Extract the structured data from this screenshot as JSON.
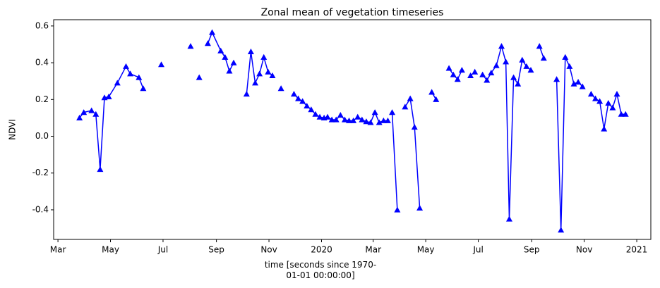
{
  "chart_data": {
    "type": "line",
    "title": "Zonal mean of vegetation timeseries",
    "x_label": "time [seconds since 1970-01-01 00:00:00]",
    "y_label": "NDVI",
    "xlim": [
      1550966400,
      1610870400
    ],
    "xticks": [
      {
        "value": 1551398400,
        "label": "Mar"
      },
      {
        "value": 1556668800,
        "label": "May"
      },
      {
        "value": 1561939200,
        "label": "Jul"
      },
      {
        "value": 1567296000,
        "label": "Sep"
      },
      {
        "value": 1572566400,
        "label": "Nov"
      },
      {
        "value": 1577836800,
        "label": "2020"
      },
      {
        "value": 1583020800,
        "label": "Mar"
      },
      {
        "value": 1588291200,
        "label": "May"
      },
      {
        "value": 1593561600,
        "label": "Jul"
      },
      {
        "value": 1598918400,
        "label": "Sep"
      },
      {
        "value": 1604188800,
        "label": "Nov"
      },
      {
        "value": 1609459200,
        "label": "2021"
      }
    ],
    "ylim": [
      -0.561,
      0.634
    ],
    "yticks": [
      -0.4,
      -0.2,
      {
        "value": 0,
        "label": "0.0"
      },
      0.2,
      0.4,
      0.6
    ],
    "color": "#0000ff",
    "marker": "triangle",
    "x": [
      1553558400,
      1553990400,
      1554768000,
      1555200000,
      1555632000,
      1556064000,
      1556496000,
      1557360000,
      1558224000,
      1558656000,
      1559520000,
      1559952000,
      null,
      1561766400,
      null,
      1564704000,
      null,
      1565568000,
      null,
      1566432000,
      1566864000,
      1567728000,
      1568160000,
      1568592000,
      1569024000,
      null,
      1570320000,
      1570752000,
      1571184000,
      1571616000,
      1572048000,
      1572480000,
      1572912000,
      null,
      1573776000,
      null,
      1575072000,
      1575504000,
      1575936000,
      1576368000,
      1576800000,
      1577232000,
      1577664000,
      1578096000,
      1578441600,
      1578873600,
      1579305600,
      1579737600,
      1580169600,
      1580601600,
      1581033600,
      1581465600,
      1581897600,
      1582329600,
      1582761600,
      1583193600,
      1583625600,
      1584057600,
      1584489600,
      null,
      1584921600,
      1585440000,
      null,
      1586217600,
      1586736000,
      1587168000,
      1587686400,
      null,
      1588896000,
      1589328000,
      null,
      1590624000,
      1591056000,
      1591488000,
      1591920000,
      null,
      1592784000,
      1593216000,
      null,
      1593993600,
      1594425600,
      1594857600,
      1595376000,
      1595894400,
      1596326400,
      1596672000,
      1597104000,
      1597536000,
      1597968000,
      1598400000,
      1598832000,
      null,
      1599696000,
      1600128000,
      null,
      1601424000,
      1601856000,
      1602288000,
      1602720000,
      1603152000,
      1603584000,
      1604016000,
      null,
      1604880000,
      1605312000,
      1605744000,
      1606176000,
      1606608000,
      1607040000,
      1607472000,
      1607904000,
      1608336000
    ],
    "values": [
      0.1,
      0.13,
      0.14,
      0.12,
      -0.18,
      0.21,
      0.215,
      0.29,
      0.38,
      0.34,
      0.32,
      0.26,
      null,
      0.39,
      null,
      0.49,
      null,
      0.32,
      null,
      0.505,
      0.565,
      0.465,
      0.43,
      0.355,
      0.4,
      null,
      0.23,
      0.46,
      0.29,
      0.34,
      0.43,
      0.35,
      0.33,
      null,
      0.26,
      null,
      0.23,
      0.205,
      0.19,
      0.165,
      0.145,
      0.12,
      0.105,
      0.1,
      0.105,
      0.09,
      0.09,
      0.115,
      0.09,
      0.085,
      0.085,
      0.105,
      0.09,
      0.08,
      0.075,
      0.13,
      0.075,
      0.085,
      0.085,
      null,
      0.13,
      -0.4,
      null,
      0.16,
      0.205,
      0.05,
      -0.39,
      null,
      0.24,
      0.2,
      null,
      0.37,
      0.335,
      0.31,
      0.36,
      null,
      0.33,
      0.35,
      null,
      0.335,
      0.305,
      0.345,
      0.385,
      0.49,
      0.405,
      -0.45,
      0.32,
      0.285,
      0.415,
      0.38,
      0.36,
      null,
      0.49,
      0.425,
      null,
      0.31,
      -0.51,
      0.43,
      0.38,
      0.285,
      0.295,
      0.27,
      null,
      0.23,
      0.205,
      0.19,
      0.04,
      0.18,
      0.155,
      0.23,
      0.12,
      0.12
    ]
  }
}
